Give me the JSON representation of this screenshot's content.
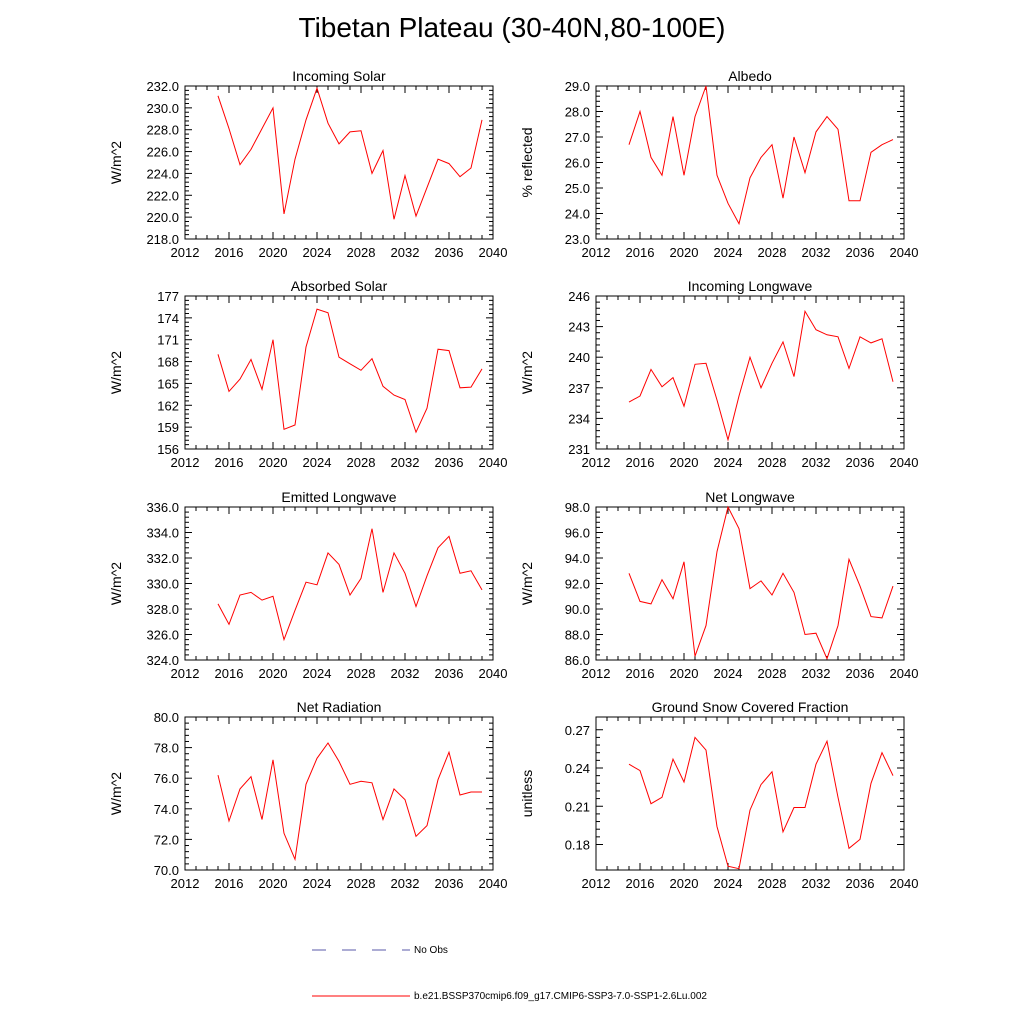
{
  "title": "Tibetan Plateau (30-40N,80-100E)",
  "legend": [
    {
      "label": "No Obs",
      "color": "#5a5aa8",
      "style": "dashed"
    },
    {
      "label": "b.e21.BSSP370cmip6.f09_g17.CMIP6-SSP3-7.0-SSP1-2.6Lu.002",
      "color": "#ff0000",
      "style": "solid"
    }
  ],
  "chart_data": [
    {
      "type": "line",
      "title": "Incoming Solar",
      "xlabel": "",
      "ylabel": "W/m^2",
      "xlim": [
        2012,
        2040
      ],
      "ylim": [
        218,
        232
      ],
      "xticks": [
        2012,
        2016,
        2020,
        2024,
        2028,
        2032,
        2036,
        2040
      ],
      "yticks": [
        "218.0",
        "220.0",
        "222.0",
        "224.0",
        "226.0",
        "228.0",
        "230.0",
        "232.0"
      ],
      "series": [
        {
          "color": "#ff0000",
          "x": [
            2015,
            2016,
            2017,
            2018,
            2019,
            2020,
            2021,
            2022,
            2023,
            2024,
            2025,
            2026,
            2027,
            2028,
            2029,
            2030,
            2031,
            2032,
            2033,
            2034,
            2035,
            2036,
            2037,
            2038,
            2039
          ],
          "values": [
            231.1,
            228.1,
            224.8,
            226.2,
            228.1,
            230.0,
            220.3,
            225.3,
            228.9,
            231.8,
            228.6,
            226.7,
            227.8,
            227.9,
            224.0,
            226.1,
            219.8,
            223.8,
            220.1,
            222.7,
            225.3,
            224.9,
            223.7,
            224.5,
            228.9
          ]
        }
      ]
    },
    {
      "type": "line",
      "title": "Albedo",
      "xlabel": "",
      "ylabel": "% reflected",
      "xlim": [
        2012,
        2040
      ],
      "ylim": [
        23,
        29
      ],
      "xticks": [
        2012,
        2016,
        2020,
        2024,
        2028,
        2032,
        2036,
        2040
      ],
      "yticks": [
        "23.0",
        "24.0",
        "25.0",
        "26.0",
        "27.0",
        "28.0",
        "29.0"
      ],
      "series": [
        {
          "color": "#ff0000",
          "x": [
            2015,
            2016,
            2017,
            2018,
            2019,
            2020,
            2021,
            2022,
            2023,
            2024,
            2025,
            2026,
            2027,
            2028,
            2029,
            2030,
            2031,
            2032,
            2033,
            2034,
            2035,
            2036,
            2037,
            2038,
            2039
          ],
          "values": [
            26.7,
            28.0,
            26.2,
            25.5,
            27.8,
            25.5,
            27.8,
            29.0,
            25.5,
            24.4,
            23.6,
            25.4,
            26.2,
            26.7,
            24.6,
            27.0,
            25.6,
            27.2,
            27.8,
            27.3,
            24.5,
            24.5,
            26.4,
            26.7,
            26.9
          ]
        }
      ]
    },
    {
      "type": "line",
      "title": "Absorbed Solar",
      "xlabel": "",
      "ylabel": "W/m^2",
      "xlim": [
        2012,
        2040
      ],
      "ylim": [
        156,
        177
      ],
      "xticks": [
        2012,
        2016,
        2020,
        2024,
        2028,
        2032,
        2036,
        2040
      ],
      "yticks": [
        "156",
        "159",
        "162",
        "165",
        "168",
        "171",
        "174",
        "177"
      ],
      "series": [
        {
          "color": "#ff0000",
          "x": [
            2015,
            2016,
            2017,
            2018,
            2019,
            2020,
            2021,
            2022,
            2023,
            2024,
            2025,
            2026,
            2027,
            2028,
            2029,
            2030,
            2031,
            2032,
            2033,
            2034,
            2035,
            2036,
            2037,
            2038,
            2039
          ],
          "values": [
            169.0,
            163.9,
            165.6,
            168.3,
            164.2,
            171.0,
            158.7,
            159.3,
            170.0,
            175.2,
            174.7,
            168.6,
            167.7,
            166.8,
            168.4,
            164.6,
            163.4,
            162.8,
            158.3,
            161.6,
            169.7,
            169.5,
            164.4,
            164.5,
            167.0
          ]
        }
      ]
    },
    {
      "type": "line",
      "title": "Incoming Longwave",
      "xlabel": "",
      "ylabel": "W/m^2",
      "xlim": [
        2012,
        2040
      ],
      "ylim": [
        231,
        246
      ],
      "xticks": [
        2012,
        2016,
        2020,
        2024,
        2028,
        2032,
        2036,
        2040
      ],
      "yticks": [
        "231",
        "234",
        "237",
        "240",
        "243",
        "246"
      ],
      "series": [
        {
          "color": "#ff0000",
          "x": [
            2015,
            2016,
            2017,
            2018,
            2019,
            2020,
            2021,
            2022,
            2023,
            2024,
            2025,
            2026,
            2027,
            2028,
            2029,
            2030,
            2031,
            2032,
            2033,
            2034,
            2035,
            2036,
            2037,
            2038,
            2039
          ],
          "values": [
            235.6,
            236.2,
            238.8,
            237.1,
            238.0,
            235.2,
            239.3,
            239.4,
            235.8,
            231.9,
            236.2,
            240.0,
            237.0,
            239.4,
            241.5,
            238.1,
            244.5,
            242.7,
            242.2,
            242.0,
            238.9,
            242.0,
            241.4,
            241.8,
            237.6
          ]
        }
      ]
    },
    {
      "type": "line",
      "title": "Emitted Longwave",
      "xlabel": "",
      "ylabel": "W/m^2",
      "xlim": [
        2012,
        2040
      ],
      "ylim": [
        324,
        336
      ],
      "xticks": [
        2012,
        2016,
        2020,
        2024,
        2028,
        2032,
        2036,
        2040
      ],
      "yticks": [
        "324.0",
        "326.0",
        "328.0",
        "330.0",
        "332.0",
        "334.0",
        "336.0"
      ],
      "series": [
        {
          "color": "#ff0000",
          "x": [
            2015,
            2016,
            2017,
            2018,
            2019,
            2020,
            2021,
            2022,
            2023,
            2024,
            2025,
            2026,
            2027,
            2028,
            2029,
            2030,
            2031,
            2032,
            2033,
            2034,
            2035,
            2036,
            2037,
            2038,
            2039
          ],
          "values": [
            328.4,
            326.8,
            329.1,
            329.3,
            328.7,
            329.0,
            325.6,
            327.9,
            330.1,
            329.9,
            332.4,
            331.5,
            329.1,
            330.4,
            334.3,
            329.3,
            332.4,
            330.8,
            328.2,
            330.6,
            332.8,
            333.7,
            330.8,
            331.0,
            329.5
          ]
        }
      ]
    },
    {
      "type": "line",
      "title": "Net Longwave",
      "xlabel": "",
      "ylabel": "W/m^2",
      "xlim": [
        2012,
        2040
      ],
      "ylim": [
        86,
        98
      ],
      "xticks": [
        2012,
        2016,
        2020,
        2024,
        2028,
        2032,
        2036,
        2040
      ],
      "yticks": [
        "86.0",
        "88.0",
        "90.0",
        "92.0",
        "94.0",
        "96.0",
        "98.0"
      ],
      "series": [
        {
          "color": "#ff0000",
          "x": [
            2015,
            2016,
            2017,
            2018,
            2019,
            2020,
            2021,
            2022,
            2023,
            2024,
            2025,
            2026,
            2027,
            2028,
            2029,
            2030,
            2031,
            2032,
            2033,
            2034,
            2035,
            2036,
            2037,
            2038,
            2039
          ],
          "values": [
            92.8,
            90.6,
            90.4,
            92.3,
            90.8,
            93.7,
            86.3,
            88.7,
            94.5,
            98.0,
            96.3,
            91.6,
            92.2,
            91.1,
            92.8,
            91.3,
            88.0,
            88.1,
            86.1,
            88.7,
            93.9,
            91.8,
            89.4,
            89.3,
            91.8
          ]
        }
      ]
    },
    {
      "type": "line",
      "title": "Net Radiation",
      "xlabel": "",
      "ylabel": "W/m^2",
      "xlim": [
        2012,
        2040
      ],
      "ylim": [
        70,
        80
      ],
      "xticks": [
        2012,
        2016,
        2020,
        2024,
        2028,
        2032,
        2036,
        2040
      ],
      "yticks": [
        "70.0",
        "72.0",
        "74.0",
        "76.0",
        "78.0",
        "80.0"
      ],
      "series": [
        {
          "color": "#ff0000",
          "x": [
            2015,
            2016,
            2017,
            2018,
            2019,
            2020,
            2021,
            2022,
            2023,
            2024,
            2025,
            2026,
            2027,
            2028,
            2029,
            2030,
            2031,
            2032,
            2033,
            2034,
            2035,
            2036,
            2037,
            2038,
            2039
          ],
          "values": [
            76.2,
            73.2,
            75.3,
            76.1,
            73.3,
            77.2,
            72.4,
            70.7,
            75.6,
            77.3,
            78.3,
            77.1,
            75.6,
            75.8,
            75.7,
            73.3,
            75.3,
            74.6,
            72.2,
            72.9,
            75.9,
            77.7,
            74.9,
            75.1,
            75.1
          ]
        }
      ]
    },
    {
      "type": "line",
      "title": "Ground Snow Covered Fraction",
      "xlabel": "",
      "ylabel": "unitless",
      "xlim": [
        2012,
        2040
      ],
      "ylim": [
        0.16,
        0.28
      ],
      "xticks": [
        2012,
        2016,
        2020,
        2024,
        2028,
        2032,
        2036,
        2040
      ],
      "yticks": [
        "0.18",
        "0.21",
        "0.24",
        "0.27"
      ],
      "ytick_values": [
        0.18,
        0.21,
        0.24,
        0.27
      ],
      "series": [
        {
          "color": "#ff0000",
          "x": [
            2015,
            2016,
            2017,
            2018,
            2019,
            2020,
            2021,
            2022,
            2023,
            2024,
            2025,
            2026,
            2027,
            2028,
            2029,
            2030,
            2031,
            2032,
            2033,
            2034,
            2035,
            2036,
            2037,
            2038,
            2039
          ],
          "values": [
            0.243,
            0.238,
            0.212,
            0.217,
            0.247,
            0.229,
            0.264,
            0.254,
            0.194,
            0.163,
            0.161,
            0.207,
            0.227,
            0.237,
            0.19,
            0.209,
            0.209,
            0.243,
            0.261,
            0.217,
            0.177,
            0.184,
            0.228,
            0.252,
            0.234
          ]
        }
      ]
    }
  ]
}
